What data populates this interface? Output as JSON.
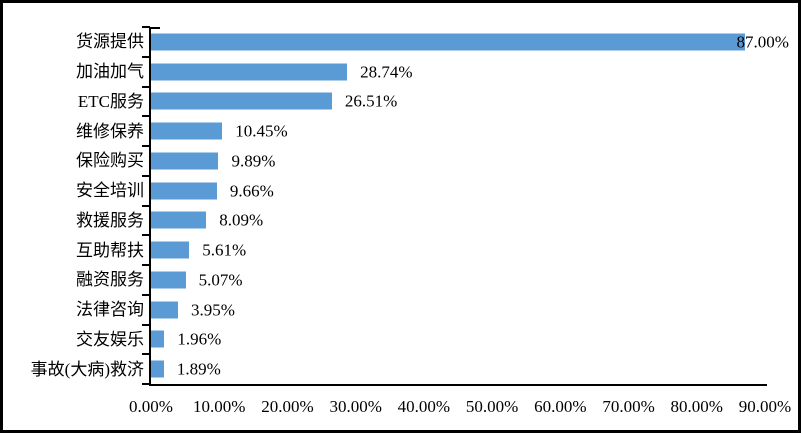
{
  "chart_data": {
    "type": "bar",
    "orientation": "horizontal",
    "title": "",
    "xlabel": "",
    "ylabel": "",
    "grid": false,
    "legend": null,
    "categories": [
      "货源提供",
      "加油加气",
      "ETC服务",
      "维修保养",
      "保险购买",
      "安全培训",
      "救援服务",
      "互助帮扶",
      "融资服务",
      "法律咨询",
      "交友娱乐",
      "事故(大病)救济"
    ],
    "values": [
      87.0,
      28.74,
      26.51,
      10.45,
      9.89,
      9.66,
      8.09,
      5.61,
      5.07,
      3.95,
      1.96,
      1.89
    ],
    "data_labels": [
      "87.00%",
      "28.74%",
      "26.51%",
      "10.45%",
      "9.89%",
      "9.66%",
      "8.09%",
      "5.61%",
      "5.07%",
      "3.95%",
      "1.96%",
      "1.89%"
    ],
    "x_tick_labels": [
      "0.00%",
      "10.00%",
      "20.00%",
      "30.00%",
      "40.00%",
      "50.00%",
      "60.00%",
      "70.00%",
      "80.00%",
      "90.00%"
    ],
    "xlim": [
      0,
      90
    ],
    "x_tick_step": 10,
    "colors": {
      "bar": "#5b9bd5",
      "axis": "#000000",
      "text": "#000000",
      "background": "#ffffff",
      "frame_border": "#000000"
    }
  }
}
